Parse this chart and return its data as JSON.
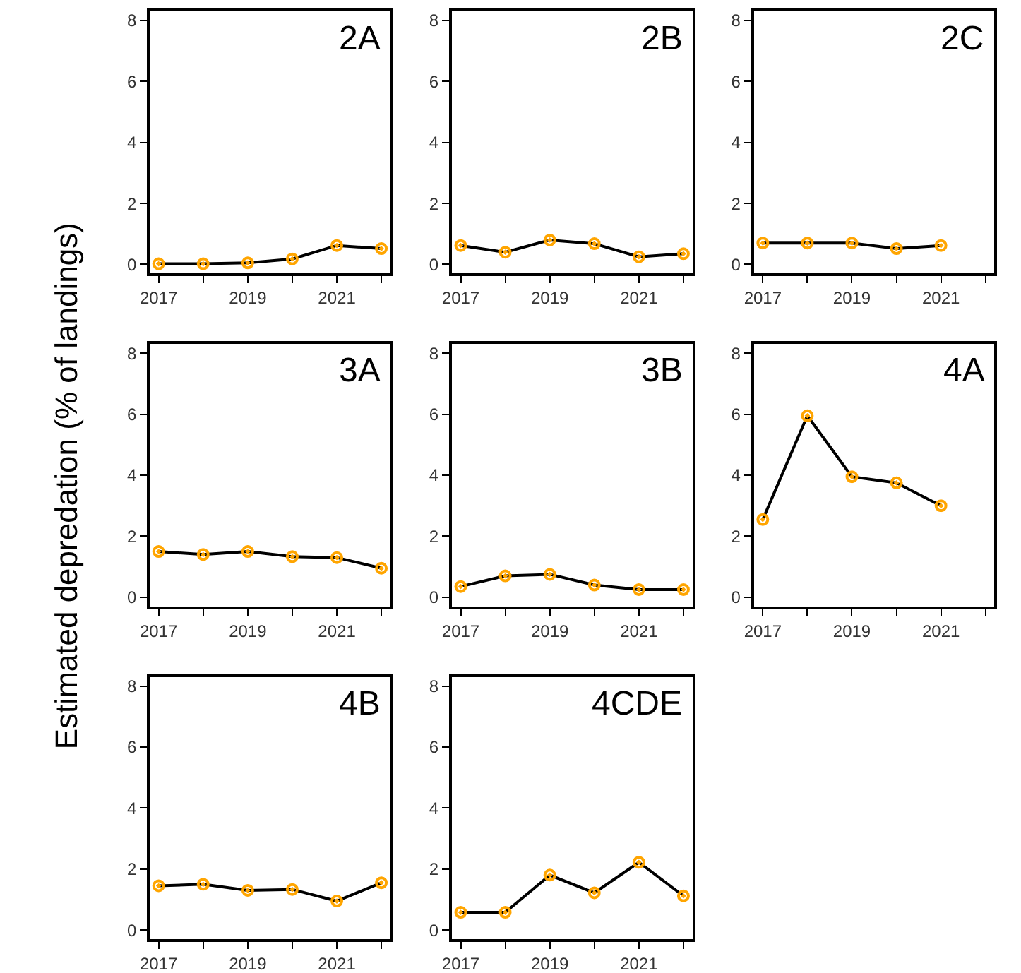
{
  "chart_data": [
    {
      "type": "line",
      "title": "2A",
      "ylabel": "Estimated depredation (% of landings)",
      "x": [
        2017,
        2018,
        2019,
        2020,
        2021,
        2022
      ],
      "values": [
        0.02,
        0.02,
        0.05,
        0.18,
        0.62,
        0.52
      ],
      "color": "#000000",
      "colors": [
        "#ffa500",
        "#ffa500",
        "#ffa500",
        "#ffa500",
        "#ffa500",
        "#ffa500"
      ],
      "marker": "circle",
      "xlim": [
        2016.8,
        2022.2
      ],
      "ylim": [
        -0.3,
        8.3
      ],
      "xticks": [
        2017,
        {
          "value": 2018,
          "label": null
        },
        2019,
        {
          "value": 2020,
          "label": null
        },
        2021,
        {
          "value": 2022,
          "label": null
        }
      ],
      "yticks": [
        0,
        2,
        4,
        6,
        8
      ]
    },
    {
      "type": "line",
      "title": "2B",
      "x": [
        2017,
        2018,
        2019,
        2020,
        2021,
        2022
      ],
      "values": [
        0.62,
        0.4,
        0.8,
        0.68,
        0.25,
        0.35
      ],
      "color": "#000000",
      "colors": [
        "#ffa500",
        "#ffa500",
        "#ffa500",
        "#ffa500",
        "#ffa500",
        "#ffa500"
      ],
      "marker": "circle",
      "xlim": [
        2016.8,
        2022.2
      ],
      "ylim": [
        -0.3,
        8.3
      ],
      "xticks": [
        2017,
        {
          "value": 2018,
          "label": null
        },
        2019,
        {
          "value": 2020,
          "label": null
        },
        2021,
        {
          "value": 2022,
          "label": null
        }
      ],
      "yticks": [
        0,
        2,
        4,
        6,
        8
      ]
    },
    {
      "type": "line",
      "title": "2C",
      "x": [
        2017,
        2018,
        2019,
        2020,
        2021
      ],
      "values": [
        0.7,
        0.7,
        0.7,
        0.52,
        0.62
      ],
      "color": "#000000",
      "colors": [
        "#ffa500",
        "#ffa500",
        "#ffa500",
        "#ffa500",
        "#ffa500"
      ],
      "marker": "circle",
      "xlim": [
        2016.8,
        2022.2
      ],
      "ylim": [
        -0.3,
        8.3
      ],
      "xticks": [
        2017,
        {
          "value": 2018,
          "label": null
        },
        2019,
        {
          "value": 2020,
          "label": null
        },
        2021,
        {
          "value": 2022,
          "label": null
        }
      ],
      "yticks": [
        0,
        2,
        4,
        6,
        8
      ]
    },
    {
      "type": "line",
      "title": "3A",
      "x": [
        2017,
        2018,
        2019,
        2020,
        2021,
        2022
      ],
      "values": [
        1.5,
        1.4,
        1.5,
        1.33,
        1.3,
        0.95
      ],
      "color": "#000000",
      "colors": [
        "#ffa500",
        "#ffa500",
        "#ffa500",
        "#ffa500",
        "#ffa500",
        "#ffa500"
      ],
      "marker": "circle",
      "xlim": [
        2016.8,
        2022.2
      ],
      "ylim": [
        -0.3,
        8.3
      ],
      "xticks": [
        2017,
        {
          "value": 2018,
          "label": null
        },
        2019,
        {
          "value": 2020,
          "label": null
        },
        2021,
        {
          "value": 2022,
          "label": null
        }
      ],
      "yticks": [
        0,
        2,
        4,
        6,
        8
      ]
    },
    {
      "type": "line",
      "title": "3B",
      "x": [
        2017,
        2018,
        2019,
        2020,
        2021,
        2022
      ],
      "values": [
        0.35,
        0.7,
        0.75,
        0.4,
        0.25,
        0.25
      ],
      "color": "#000000",
      "colors": [
        "#ffa500",
        "#ffa500",
        "#ffa500",
        "#ffa500",
        "#ffa500",
        "#ffa500"
      ],
      "marker": "circle",
      "xlim": [
        2016.8,
        2022.2
      ],
      "ylim": [
        -0.3,
        8.3
      ],
      "xticks": [
        2017,
        {
          "value": 2018,
          "label": null
        },
        2019,
        {
          "value": 2020,
          "label": null
        },
        2021,
        {
          "value": 2022,
          "label": null
        }
      ],
      "yticks": [
        0,
        2,
        4,
        6,
        8
      ]
    },
    {
      "type": "line",
      "title": "4A",
      "x": [
        2017,
        2018,
        2019,
        2020,
        2021
      ],
      "values": [
        2.55,
        5.95,
        3.95,
        3.75,
        3.0
      ],
      "color": "#000000",
      "colors": [
        "#ffa500",
        "#ffa500",
        "#ffa500",
        "#ffa500",
        "#ffa500"
      ],
      "marker": "circle",
      "xlim": [
        2016.8,
        2022.2
      ],
      "ylim": [
        -0.3,
        8.3
      ],
      "xticks": [
        2017,
        {
          "value": 2018,
          "label": null
        },
        2019,
        {
          "value": 2020,
          "label": null
        },
        2021,
        {
          "value": 2022,
          "label": null
        }
      ],
      "yticks": [
        0,
        2,
        4,
        6,
        8
      ]
    },
    {
      "type": "line",
      "title": "4B",
      "x": [
        2017,
        2018,
        2019,
        2020,
        2021,
        2022
      ],
      "values": [
        1.45,
        1.5,
        1.3,
        1.33,
        0.95,
        1.55
      ],
      "color": "#000000",
      "colors": [
        "#ffa500",
        "#ffa500",
        "#ffa500",
        "#ffa500",
        "#ffa500",
        "#ffa500"
      ],
      "marker": "circle",
      "xlim": [
        2016.8,
        2022.2
      ],
      "ylim": [
        -0.3,
        8.3
      ],
      "xticks": [
        2017,
        {
          "value": 2018,
          "label": null
        },
        2019,
        {
          "value": 2020,
          "label": null
        },
        2021,
        {
          "value": 2022,
          "label": null
        }
      ],
      "yticks": [
        0,
        2,
        4,
        6,
        8
      ]
    },
    {
      "type": "line",
      "title": "4CDE",
      "x": [
        2017,
        2018,
        2019,
        2020,
        2021,
        2022
      ],
      "values": [
        0.58,
        0.58,
        1.8,
        1.22,
        2.22,
        1.12
      ],
      "color": "#000000",
      "colors": [
        "#ffa500",
        "#ffa500",
        "#ffa500",
        "#ffa500",
        "#ffa500",
        "#ffa500"
      ],
      "marker": "circle",
      "xlim": [
        2016.8,
        2022.2
      ],
      "ylim": [
        -0.3,
        8.3
      ],
      "xticks": [
        2017,
        {
          "value": 2018,
          "label": null
        },
        2019,
        {
          "value": 2020,
          "label": null
        },
        2021,
        {
          "value": 2022,
          "label": null
        }
      ],
      "yticks": [
        0,
        2,
        4,
        6,
        8
      ]
    }
  ]
}
